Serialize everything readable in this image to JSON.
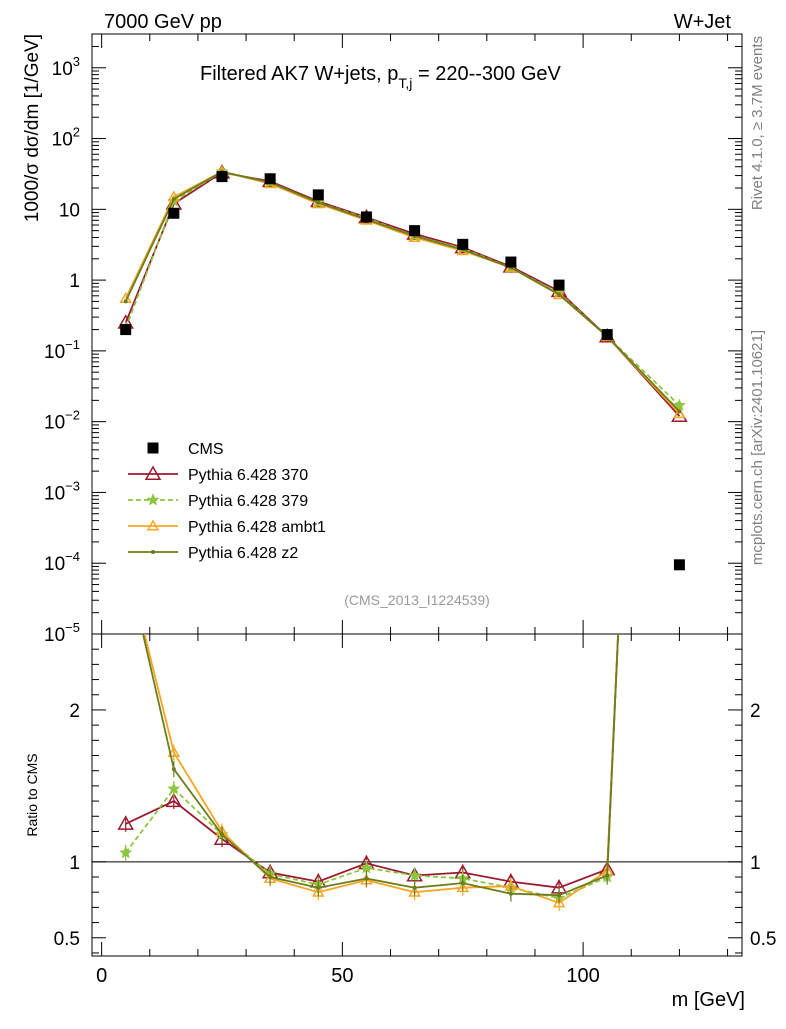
{
  "header": {
    "energy": "7000 GeV pp",
    "process": "W+Jet"
  },
  "side": {
    "rivet": "Rivet 4.1.0, ≥ 3.7M events",
    "mcplots": "mcplots.cern.ch [arXiv:2401.10621]"
  },
  "chart_data": {
    "type": "line",
    "title": "Filtered AK7 W+jets, p",
    "title_sub": "T,j",
    "title_tail": " = 220--300 GeV",
    "analysis": "(CMS_2013_I1224539)",
    "xlabel": "m [GeV]",
    "ylabel": "1000/σ  dσ/dm [1/GeV]",
    "ratio_ylabel": "Ratio to CMS",
    "xlim": [
      -2,
      133
    ],
    "ylim": [
      1e-05,
      3000
    ],
    "ratio_ylim": [
      0.38,
      2.5
    ],
    "x_ticks": [
      "0",
      "50",
      "100"
    ],
    "x_tick_values": [
      0,
      50,
      100
    ],
    "y_tick_labels": [
      {
        "base": "10",
        "exp": "3",
        "value": 1000
      },
      {
        "base": "10",
        "exp": "2",
        "value": 100
      },
      {
        "base": "10",
        "exp": "",
        "value": 10
      },
      {
        "base": "1",
        "exp": "",
        "value": 1
      },
      {
        "base": "10",
        "exp": "−1",
        "value": 0.1
      },
      {
        "base": "10",
        "exp": "−2",
        "value": 0.01
      },
      {
        "base": "10",
        "exp": "−3",
        "value": 0.001
      },
      {
        "base": "10",
        "exp": "−4",
        "value": 0.0001
      },
      {
        "base": "10",
        "exp": "−5",
        "value": 1e-05
      }
    ],
    "ratio_ticks": [
      {
        "label": "0.5",
        "value": 0.5
      },
      {
        "label": "1",
        "value": 1
      },
      {
        "label": "2",
        "value": 2
      }
    ],
    "data": {
      "name": "CMS",
      "color": "#000000",
      "x": [
        5,
        15,
        25,
        35,
        45,
        55,
        65,
        75,
        85,
        95,
        105,
        120
      ],
      "y": [
        0.2,
        8.8,
        29,
        27,
        16,
        7.8,
        5.0,
        3.2,
        1.8,
        0.85,
        0.17,
        9.5e-05
      ]
    },
    "series": [
      {
        "name": "Pythia 6.428 370",
        "color": "#9a1b2f",
        "marker": "triangle-open",
        "dash": "",
        "x": [
          5,
          15,
          25,
          35,
          45,
          55,
          65,
          75,
          85,
          95,
          105,
          120
        ],
        "y": [
          0.25,
          12,
          33,
          25,
          13,
          7.7,
          4.5,
          2.9,
          1.55,
          0.7,
          0.16,
          0.012
        ],
        "ratio_x": [
          5,
          15,
          25,
          35,
          45,
          55,
          65,
          75,
          85,
          95,
          105,
          108
        ],
        "ratio": [
          1.25,
          1.4,
          1.15,
          0.93,
          0.87,
          0.99,
          0.91,
          0.93,
          0.87,
          0.83,
          0.95,
          3.0
        ]
      },
      {
        "name": "Pythia 6.428 379",
        "color": "#8cc63f",
        "marker": "star",
        "dash": "5,3",
        "x": [
          5,
          15,
          25,
          35,
          45,
          55,
          65,
          75,
          85,
          95,
          105,
          120
        ],
        "y": [
          0.21,
          13,
          34,
          24,
          12.5,
          7.5,
          4.2,
          2.8,
          1.5,
          0.66,
          0.16,
          0.017
        ],
        "ratio_x": [
          5,
          15,
          25,
          35,
          45,
          55,
          65,
          75,
          85,
          95,
          105,
          108
        ],
        "ratio": [
          1.06,
          1.48,
          1.18,
          0.92,
          0.85,
          0.96,
          0.91,
          0.89,
          0.83,
          0.76,
          0.9,
          3.0
        ]
      },
      {
        "name": "Pythia 6.428 ambt1",
        "color": "#f5a623",
        "marker": "triangle-open-small",
        "dash": "",
        "x": [
          5,
          15,
          25,
          35,
          45,
          55,
          65,
          75,
          85,
          95,
          105,
          120
        ],
        "y": [
          0.55,
          15,
          34,
          23,
          12,
          7.0,
          4.0,
          2.6,
          1.5,
          0.62,
          0.16,
          0.013
        ],
        "ratio_x": [
          5,
          15,
          25,
          35,
          45,
          55,
          65,
          75,
          85,
          95,
          105,
          108
        ],
        "ratio": [
          3.0,
          1.72,
          1.2,
          0.89,
          0.8,
          0.88,
          0.8,
          0.83,
          0.84,
          0.73,
          0.94,
          3.0
        ]
      },
      {
        "name": "Pythia 6.428 z2",
        "color": "#6b7d1c",
        "marker": "dot",
        "dash": "",
        "x": [
          5,
          15,
          25,
          35,
          45,
          55,
          65,
          75,
          85,
          95,
          105,
          120
        ],
        "y": [
          0.5,
          14,
          34,
          24,
          12.5,
          7.2,
          4.2,
          2.7,
          1.5,
          0.63,
          0.16,
          0.014
        ],
        "ratio_x": [
          5,
          15,
          25,
          35,
          45,
          55,
          65,
          75,
          85,
          95,
          105,
          108
        ],
        "ratio": [
          3.0,
          1.61,
          1.18,
          0.9,
          0.83,
          0.89,
          0.83,
          0.86,
          0.79,
          0.78,
          0.91,
          3.0
        ]
      }
    ]
  }
}
